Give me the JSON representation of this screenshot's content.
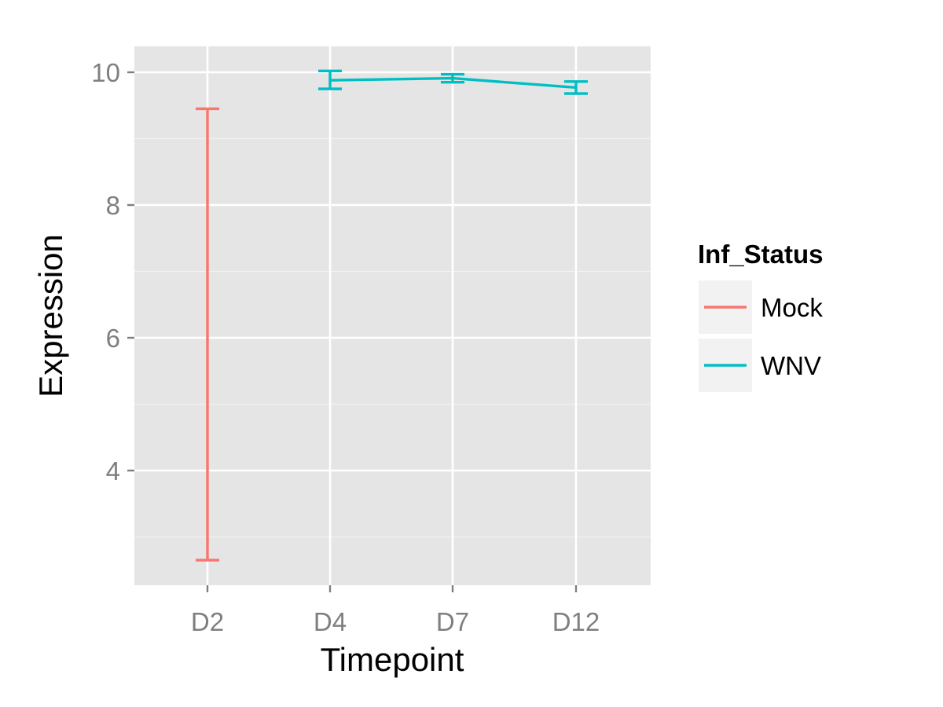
{
  "chart_data": {
    "type": "line",
    "categories": [
      "D2",
      "D4",
      "D7",
      "D12"
    ],
    "xlabel": "Timepoint",
    "ylabel": "Expression",
    "ylim": [
      2.4,
      10.3
    ],
    "yticks": [
      4,
      6,
      8,
      10
    ],
    "grid": true,
    "legend": {
      "title": "Inf_Status",
      "position": "right"
    },
    "series": [
      {
        "name": "Mock",
        "color": "#F8766D",
        "points": [
          {
            "x": "D2",
            "ymin": 2.65,
            "ymax": 9.45
          }
        ]
      },
      {
        "name": "WNV",
        "color": "#00BFC4",
        "points": [
          {
            "x": "D4",
            "y": 9.88,
            "ymin": 9.75,
            "ymax": 10.02
          },
          {
            "x": "D7",
            "y": 9.91,
            "ymin": 9.85,
            "ymax": 9.97
          },
          {
            "x": "D12",
            "y": 9.77,
            "ymin": 9.68,
            "ymax": 9.86
          }
        ]
      }
    ]
  }
}
